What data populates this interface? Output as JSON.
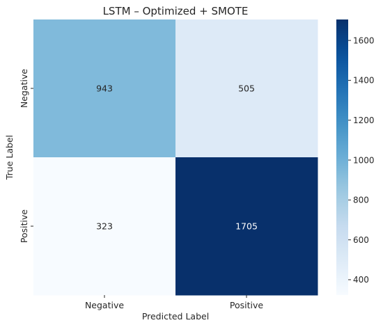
{
  "chart_data": {
    "type": "heatmap",
    "title": "LSTM – Optimized + SMOTE",
    "xlabel": "Predicted Label",
    "ylabel": "True Label",
    "x_categories": [
      "Negative",
      "Positive"
    ],
    "y_categories": [
      "Negative",
      "Positive"
    ],
    "values": [
      [
        943,
        505
      ],
      [
        323,
        1705
      ]
    ],
    "colormap": "Blues",
    "colorbar": {
      "range": [
        323,
        1705
      ],
      "ticks": [
        400,
        600,
        800,
        1000,
        1200,
        1400,
        1600
      ]
    },
    "text_colors": {
      "light_cell": "#262626",
      "dark_cell": "#ffffff"
    }
  }
}
